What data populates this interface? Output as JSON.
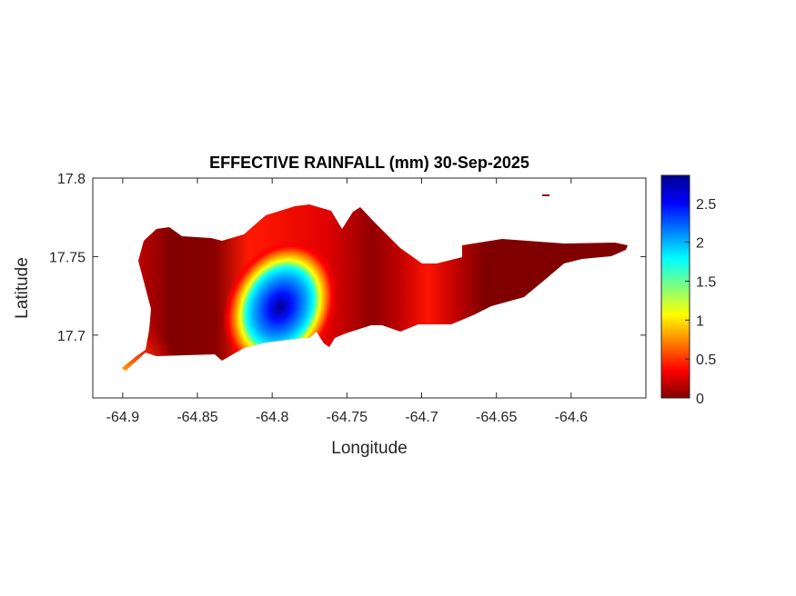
{
  "chart_data": {
    "type": "heatmap",
    "title": "EFFECTIVE RAINFALL (mm) 30-Sep-2025",
    "xlabel": "Longitude",
    "ylabel": "Latitude",
    "xlim": [
      -64.92,
      -64.55
    ],
    "ylim": [
      17.66,
      17.8
    ],
    "xticks": [
      -64.9,
      -64.85,
      -64.8,
      -64.75,
      -64.7,
      -64.65,
      -64.6
    ],
    "xtick_labels": [
      "-64.9",
      "-64.85",
      "-64.8",
      "-64.75",
      "-64.7",
      "-64.65",
      "-64.6"
    ],
    "yticks": [
      17.7,
      17.75,
      17.8
    ],
    "ytick_labels": [
      "17.7",
      "17.75",
      "17.8"
    ],
    "colormap": "jet",
    "colorbar": {
      "clim": [
        0,
        2.86
      ],
      "ticks": [
        0,
        0.5,
        1,
        1.5,
        2,
        2.5
      ],
      "tick_labels": [
        "0",
        "0.5",
        "1",
        "1.5",
        "2",
        "2.5"
      ]
    },
    "peak": {
      "lon": -64.8,
      "lat": 17.718,
      "value": 2.86
    },
    "grid": false
  }
}
